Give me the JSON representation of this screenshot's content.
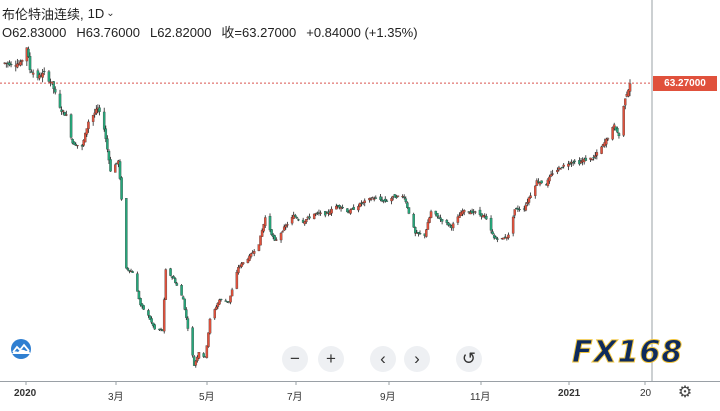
{
  "instrument": {
    "name": "布伦特油连续,",
    "interval": "1D",
    "caret": "⌄"
  },
  "ohlc": {
    "open": "O62.83000",
    "high": "H63.76000",
    "low": "L62.82000",
    "close": "收=63.27000",
    "change": "+0.84000 (+1.35%)"
  },
  "last_price_label": "63.27000",
  "controls": {
    "zoom_out": "−",
    "zoom_in": "+",
    "scroll_left": "‹",
    "scroll_right": "›",
    "reset": "↺"
  },
  "x_axis_labels": [
    "2020",
    "3月",
    "5月",
    "7月",
    "9月",
    "11月",
    "2021",
    "20"
  ],
  "logo_text": "FX168",
  "colors": {
    "up": "#e0513c",
    "down": "#26a67a",
    "wick": "#222222",
    "price_line": "#d9534f",
    "badge": "#e0513c"
  },
  "chart_data": {
    "type": "candlestick",
    "x_start": "2019-12-20",
    "x_end": "2021-01-22",
    "ylim": [
      17,
      70
    ],
    "close_path": [
      [
        "2019-12-23",
        66.4
      ],
      [
        "2020-01-02",
        66.3
      ],
      [
        "2020-01-06",
        68.9
      ],
      [
        "2020-01-08",
        65.4
      ],
      [
        "2020-01-13",
        64.2
      ],
      [
        "2020-01-17",
        64.8
      ],
      [
        "2020-01-22",
        63.2
      ],
      [
        "2020-01-27",
        59.3
      ],
      [
        "2020-01-31",
        58.2
      ],
      [
        "2020-02-04",
        54.0
      ],
      [
        "2020-02-10",
        53.3
      ],
      [
        "2020-02-14",
        57.3
      ],
      [
        "2020-02-20",
        59.3
      ],
      [
        "2020-02-24",
        56.3
      ],
      [
        "2020-02-28",
        49.7
      ],
      [
        "2020-03-04",
        51.1
      ],
      [
        "2020-03-06",
        45.3
      ],
      [
        "2020-03-09",
        34.4
      ],
      [
        "2020-03-13",
        33.8
      ],
      [
        "2020-03-18",
        28.7
      ],
      [
        "2020-03-23",
        27.0
      ],
      [
        "2020-03-27",
        24.9
      ],
      [
        "2020-04-01",
        24.7
      ],
      [
        "2020-04-03",
        34.1
      ],
      [
        "2020-04-08",
        32.8
      ],
      [
        "2020-04-14",
        29.6
      ],
      [
        "2020-04-21",
        19.3
      ],
      [
        "2020-04-24",
        21.4
      ],
      [
        "2020-04-28",
        20.5
      ],
      [
        "2020-05-01",
        26.4
      ],
      [
        "2020-05-07",
        29.5
      ],
      [
        "2020-05-13",
        29.2
      ],
      [
        "2020-05-19",
        34.6
      ],
      [
        "2020-05-26",
        36.2
      ],
      [
        "2020-06-01",
        38.3
      ],
      [
        "2020-06-05",
        42.3
      ],
      [
        "2020-06-11",
        38.6
      ],
      [
        "2020-06-17",
        40.7
      ],
      [
        "2020-06-23",
        42.6
      ],
      [
        "2020-06-29",
        41.7
      ],
      [
        "2020-07-06",
        42.9
      ],
      [
        "2020-07-14",
        42.9
      ],
      [
        "2020-07-21",
        44.3
      ],
      [
        "2020-07-28",
        43.2
      ],
      [
        "2020-08-04",
        44.4
      ],
      [
        "2020-08-12",
        45.4
      ],
      [
        "2020-08-20",
        44.9
      ],
      [
        "2020-08-26",
        45.6
      ],
      [
        "2020-09-01",
        45.6
      ],
      [
        "2020-09-08",
        39.8
      ],
      [
        "2020-09-14",
        39.6
      ],
      [
        "2020-09-18",
        43.2
      ],
      [
        "2020-09-25",
        41.9
      ],
      [
        "2020-10-01",
        40.9
      ],
      [
        "2020-10-08",
        43.3
      ],
      [
        "2020-10-15",
        43.2
      ],
      [
        "2020-10-22",
        42.5
      ],
      [
        "2020-10-28",
        39.1
      ],
      [
        "2020-11-02",
        39.0
      ],
      [
        "2020-11-06",
        39.5
      ],
      [
        "2020-11-10",
        43.6
      ],
      [
        "2020-11-16",
        43.8
      ],
      [
        "2020-11-24",
        48.0
      ],
      [
        "2020-11-30",
        47.6
      ],
      [
        "2020-12-04",
        49.3
      ],
      [
        "2020-12-10",
        50.3
      ],
      [
        "2020-12-16",
        51.1
      ],
      [
        "2020-12-21",
        50.9
      ],
      [
        "2020-12-24",
        51.3
      ],
      [
        "2020-12-30",
        51.6
      ],
      [
        "2021-01-05",
        53.6
      ],
      [
        "2021-01-07",
        54.4
      ],
      [
        "2021-01-12",
        56.6
      ],
      [
        "2021-01-15",
        55.1
      ],
      [
        "2021-01-19",
        61.1
      ],
      [
        "2021-01-21",
        62.4
      ],
      [
        "2021-01-22",
        63.3
      ]
    ],
    "last_close": 63.27
  }
}
